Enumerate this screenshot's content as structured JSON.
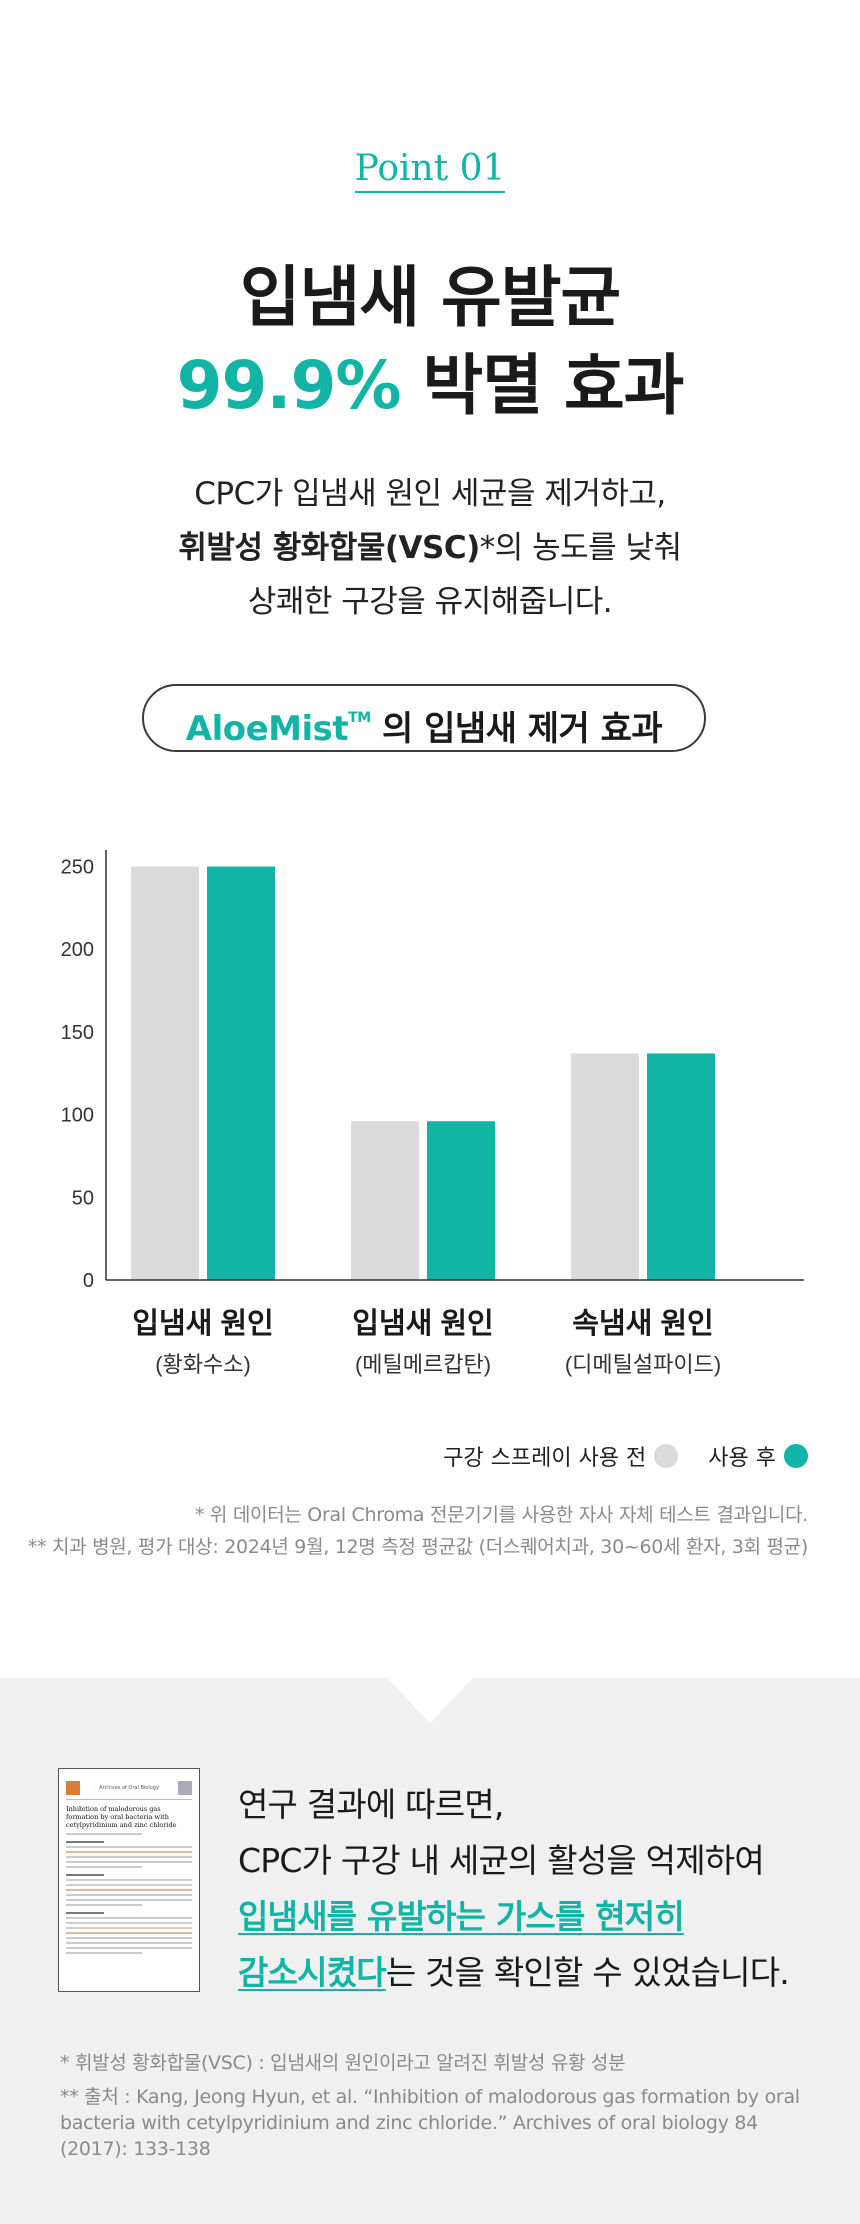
{
  "point": {
    "label": "Point 01"
  },
  "headline": {
    "line1": "입냄새 유발균",
    "line2_accent": "99.9%",
    "line2_rest": " 박멸 효과"
  },
  "intro": {
    "line1": "CPC가 입냄새 원인 세균을 제거하고,",
    "line2_bold": "휘발성 황화합물(VSC)",
    "line2_rest": "*의 농도를 낮춰",
    "line3": "상쾌한 구강을 유지해줍니다."
  },
  "pill": {
    "brand": "AloeMist",
    "tm": "TM",
    "rest": " 의 입냄새 제거 효과"
  },
  "chart_data": {
    "type": "bar",
    "categories": [
      "입냄새 원인",
      "입냄새 원인",
      "속냄새 원인"
    ],
    "category_sublabels": [
      "(황화수소)",
      "(메틸메르캅탄)",
      "(디메틸설파이드)"
    ],
    "series": [
      {
        "name": "구강 스프레이 사용 전",
        "color": "#dadada",
        "values": [
          250,
          96,
          137
        ]
      },
      {
        "name": "사용 후",
        "color": "#12b5a5",
        "values": [
          250,
          96,
          137
        ]
      }
    ],
    "yticks": [
      0,
      50,
      100,
      150,
      200,
      250
    ],
    "ylim": [
      0,
      260
    ],
    "grid": false,
    "legend_position": "bottom-right"
  },
  "legend": {
    "before": "구강 스프레이 사용 전",
    "after": "사용 후",
    "before_color": "#dadada",
    "after_color": "#12b5a5"
  },
  "notes": {
    "note1": "* 위 데이터는 Oral Chroma 전문기기를 사용한 자사 자체 테스트 결과입니다.",
    "note2": "** 치과 병원, 평가 대상: 2024년 9월, 12명 측정 평균값 (더스퀘어치과, 30~60세 환자, 3회 평균)"
  },
  "research": {
    "line1": "연구 결과에 따르면,",
    "line2": "CPC가 구강 내 세균의 활성을 억제하여",
    "line3_highlight": "입냄새를 유발하는 가스를 현저히",
    "line4_highlight": "감소시켰다",
    "line4_rest": "는 것을 확인할 수 있었습니다.",
    "paper_journal": "Archives of Oral Biology",
    "paper_title": "Inhibition of malodorous gas formation by oral bacteria with cetylpyridinium and zinc chloride"
  },
  "footnotes": {
    "fn1": "* 휘발성 황화합물(VSC) : 입냄새의 원인이라고 알려진 휘발성 유황 성분",
    "fn2": "** 출처 : Kang, Jeong Hyun, et al. “Inhibition of malodorous gas formation by oral bacteria with cetylpyridinium and zinc chloride.” Archives of oral biology 84 (2017): 133-138"
  }
}
